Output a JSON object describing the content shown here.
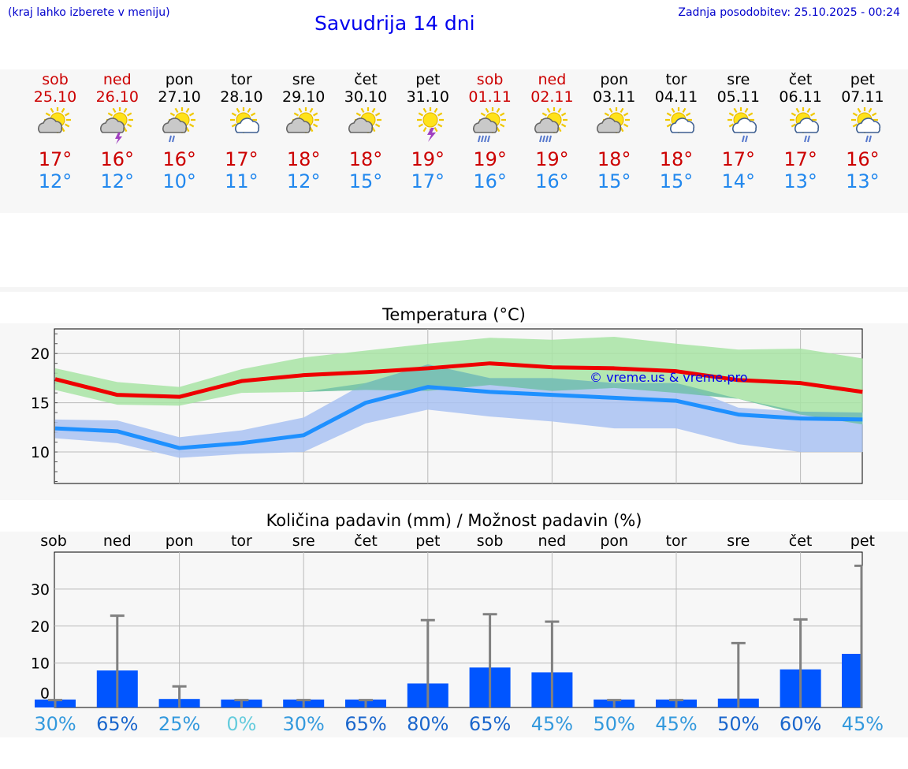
{
  "header": {
    "hint": "(kraj lahko izberete v meniju)",
    "title": "Savudrija 14 dni",
    "updated": "Zadnja posodobitev: 25.10.2025 - 00:24"
  },
  "days": [
    {
      "name": "sob",
      "date": "25.10",
      "weekend": true,
      "icon": "sun-cloud-icon",
      "tmax": "17°",
      "tmin": "12°"
    },
    {
      "name": "ned",
      "date": "26.10",
      "weekend": true,
      "icon": "sun-cloud-lightning-icon",
      "tmax": "16°",
      "tmin": "12°"
    },
    {
      "name": "pon",
      "date": "27.10",
      "weekend": false,
      "icon": "sun-cloud-rain-icon",
      "tmax": "16°",
      "tmin": "10°"
    },
    {
      "name": "tor",
      "date": "28.10",
      "weekend": false,
      "icon": "sun-cloud-white-icon",
      "tmax": "17°",
      "tmin": "11°"
    },
    {
      "name": "sre",
      "date": "29.10",
      "weekend": false,
      "icon": "sun-cloud-icon",
      "tmax": "18°",
      "tmin": "12°"
    },
    {
      "name": "čet",
      "date": "30.10",
      "weekend": false,
      "icon": "sun-cloud-icon",
      "tmax": "18°",
      "tmin": "15°"
    },
    {
      "name": "pet",
      "date": "31.10",
      "weekend": false,
      "icon": "sun-lightning-icon",
      "tmax": "19°",
      "tmin": "17°"
    },
    {
      "name": "sob",
      "date": "01.11",
      "weekend": true,
      "icon": "sun-cloud-heavy-rain-icon",
      "tmax": "19°",
      "tmin": "16°"
    },
    {
      "name": "ned",
      "date": "02.11",
      "weekend": true,
      "icon": "sun-cloud-heavy-rain-icon",
      "tmax": "19°",
      "tmin": "16°"
    },
    {
      "name": "pon",
      "date": "03.11",
      "weekend": false,
      "icon": "sun-cloud-icon",
      "tmax": "18°",
      "tmin": "15°"
    },
    {
      "name": "tor",
      "date": "04.11",
      "weekend": false,
      "icon": "sun-cloud-white-icon",
      "tmax": "18°",
      "tmin": "15°"
    },
    {
      "name": "sre",
      "date": "05.11",
      "weekend": false,
      "icon": "sun-cloud-rain-white-icon",
      "tmax": "17°",
      "tmin": "14°"
    },
    {
      "name": "čet",
      "date": "06.11",
      "weekend": false,
      "icon": "sun-cloud-rain-white-icon",
      "tmax": "17°",
      "tmin": "13°"
    },
    {
      "name": "pet",
      "date": "07.11",
      "weekend": false,
      "icon": "sun-cloud-rain-white-icon",
      "tmax": "16°",
      "tmin": "13°"
    }
  ],
  "colors": {
    "weekend": "#cc0000",
    "tmax": "#cc0000",
    "tmin": "#2288ee",
    "max_band": "#a8e4a4",
    "min_band": "#a9c2f2",
    "max_line": "#ee0000",
    "min_line": "#1e90ff",
    "bar": "#0055ff",
    "err": "#808080"
  },
  "chart_data": [
    {
      "type": "line",
      "title": "Temperatura (°C)",
      "watermark": "© vreme.us & vreme.pro",
      "x": [
        0,
        1,
        2,
        3,
        4,
        5,
        6,
        7,
        8,
        9,
        10,
        11,
        12,
        13
      ],
      "ylim": [
        6.8,
        22.5
      ],
      "yticks": [
        "10",
        "15",
        "20"
      ],
      "series": [
        {
          "name": "max",
          "values": [
            17.4,
            15.8,
            15.6,
            17.2,
            17.8,
            18.1,
            18.5,
            19.0,
            18.6,
            18.5,
            18.2,
            17.3,
            17.0,
            16.1
          ]
        },
        {
          "name": "min",
          "values": [
            12.4,
            12.1,
            10.4,
            10.9,
            11.7,
            15.0,
            16.6,
            16.1,
            15.8,
            15.5,
            15.2,
            13.8,
            13.4,
            13.3
          ]
        },
        {
          "name": "max_band_upper",
          "values": [
            18.5,
            17.1,
            16.6,
            18.4,
            19.6,
            20.3,
            21.0,
            21.6,
            21.4,
            21.7,
            21.0,
            20.4,
            20.5,
            19.5
          ]
        },
        {
          "name": "max_band_lower",
          "values": [
            16.3,
            14.8,
            14.7,
            16.0,
            16.1,
            16.3,
            16.2,
            16.8,
            16.2,
            16.5,
            16.0,
            15.4,
            13.8,
            12.8
          ]
        },
        {
          "name": "min_band_upper",
          "values": [
            13.3,
            13.2,
            11.5,
            12.2,
            13.5,
            17.0,
            18.9,
            17.5,
            17.5,
            17.0,
            17.0,
            14.5,
            14.1,
            14.0
          ]
        },
        {
          "name": "min_band_lower",
          "values": [
            11.4,
            10.9,
            9.4,
            9.8,
            10.0,
            12.9,
            14.3,
            13.6,
            13.1,
            12.4,
            12.4,
            10.8,
            10.0,
            10.0
          ]
        }
      ]
    },
    {
      "type": "bar",
      "title": "Količina padavin (mm) / Možnost padavin (%)",
      "categories": [
        "sob",
        "ned",
        "pon",
        "tor",
        "sre",
        "čet",
        "pet",
        "sob",
        "ned",
        "pon",
        "tor",
        "sre",
        "čet",
        "pet"
      ],
      "values": [
        0,
        8,
        0.3,
        0,
        0,
        0,
        4.5,
        8.8,
        7.5,
        0,
        0,
        0.4,
        8.3,
        12.5
      ],
      "err_high": [
        0,
        22.8,
        3.7,
        0,
        0,
        0,
        21.6,
        23.2,
        21.2,
        0,
        0,
        15.4,
        21.8,
        36.3
      ],
      "ylim": [
        -2,
        40
      ],
      "yticks": [
        "0",
        "10",
        "20",
        "30"
      ],
      "probability": [
        "30%",
        "65%",
        "25%",
        "0%",
        "30%",
        "65%",
        "80%",
        "65%",
        "45%",
        "50%",
        "45%",
        "50%",
        "60%",
        "45%"
      ],
      "prob_colors": [
        "#3399dd",
        "#1a66cc",
        "#3399dd",
        "#66ccdd",
        "#3399dd",
        "#1a66cc",
        "#1a66cc",
        "#1a66cc",
        "#3399dd",
        "#3399dd",
        "#3399dd",
        "#1a66cc",
        "#1a66cc",
        "#3399dd"
      ]
    }
  ]
}
